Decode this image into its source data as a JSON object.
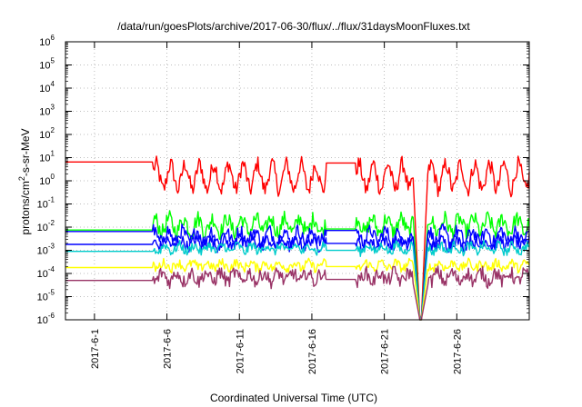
{
  "chart_data": {
    "type": "line",
    "title": "/data/run/goesPlots/archive/2017-06-30/flux/../flux/31daysMoonFluxes.txt",
    "xlabel": "Coordinated Universal Time (UTC)",
    "ylabel": "protons/cm²-s-sr-MeV",
    "ylabel_parts": {
      "pre": "protons/cm",
      "sup": "2",
      "post": "-s-sr-MeV"
    },
    "yscale": "log",
    "ylim_exp": [
      -6,
      6
    ],
    "xlim": [
      "2017-05-30",
      "2017-07-01"
    ],
    "x_ticks": [
      "2017-6-1",
      "2017-6-6",
      "2017-6-11",
      "2017-6-16",
      "2017-6-21",
      "2017-6-26"
    ],
    "y_tick_base": "10",
    "y_ticks_exp": [
      "-6",
      "-5",
      "-4",
      "-3",
      "-2",
      "-1",
      "0",
      "1",
      "2",
      "3",
      "4",
      "5",
      "6"
    ],
    "grid": true,
    "series": [
      {
        "color": "#ff0000",
        "baseline": 6.5,
        "mean": 1.5,
        "amp": 0.55,
        "noise": 0.35
      },
      {
        "color": "#00ff00",
        "baseline": 0.0075,
        "mean": 0.012,
        "amp": 0.3,
        "noise": 0.35
      },
      {
        "color": "#0000ff",
        "baseline": 0.0065,
        "mean": 0.004,
        "amp": 0.25,
        "noise": 0.3
      },
      {
        "color": "#0000ff",
        "baseline": 0.0018,
        "mean": 0.002,
        "amp": 0.15,
        "noise": 0.25
      },
      {
        "color": "#00cccc",
        "baseline": 0.0009,
        "mean": 0.0012,
        "amp": 0.15,
        "noise": 0.2
      },
      {
        "color": "#ffff00",
        "baseline": 0.00018,
        "mean": 0.00022,
        "amp": 0.12,
        "noise": 0.2
      },
      {
        "color": "#993366",
        "baseline": 5e-05,
        "mean": 7e-05,
        "amp": 0.2,
        "noise": 0.3
      }
    ],
    "data_gap": {
      "start": "2017-05-30",
      "end": "2017-06-05"
    },
    "second_gap": {
      "start": "2017-06-17",
      "end": "2017-06-19"
    },
    "dropout": {
      "start": "2017-06-23",
      "end": "2017-06-24"
    }
  }
}
